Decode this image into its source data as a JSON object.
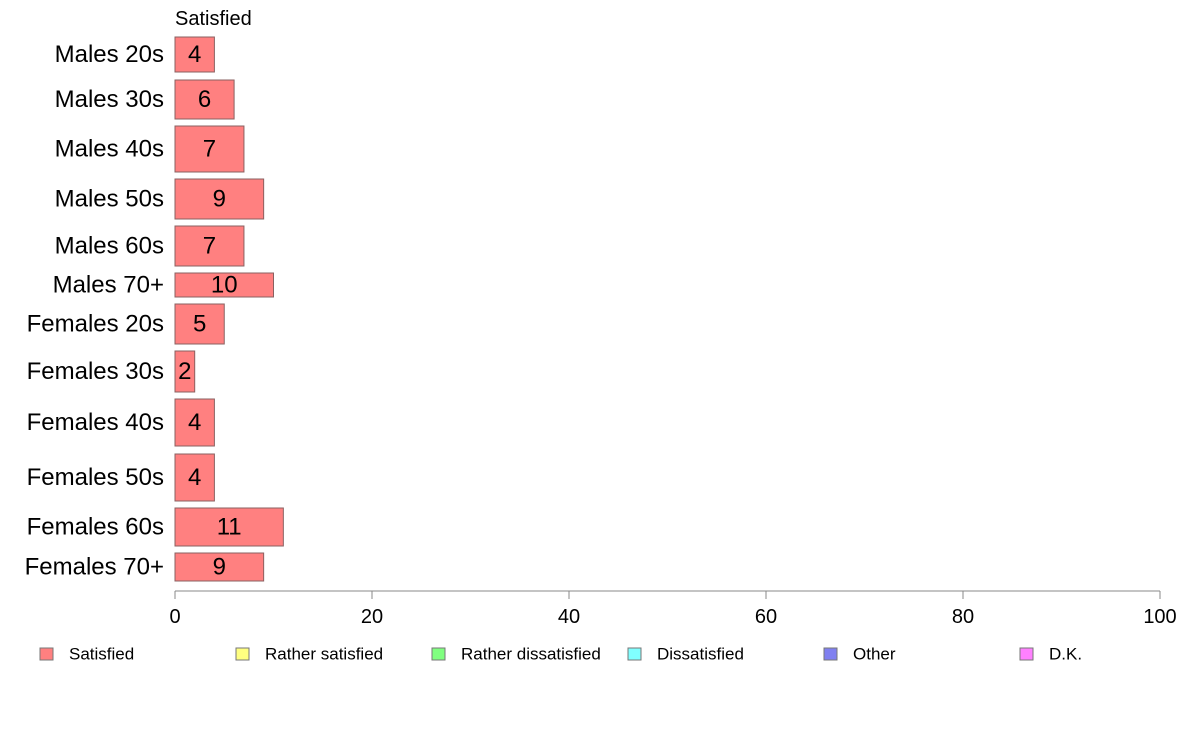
{
  "chart_data": {
    "type": "bar",
    "orientation": "horizontal",
    "stacked": true,
    "categories": [
      "Males 20s",
      "Males 30s",
      "Males 40s",
      "Males 50s",
      "Males 60s",
      "Males 70+",
      "Females 20s",
      "Females 30s",
      "Females 40s",
      "Females 50s",
      "Females 60s",
      "Females 70+"
    ],
    "series": [
      {
        "name": "Satisfied",
        "color": "#ff8080",
        "values": [
          4,
          6,
          7,
          9,
          7,
          10,
          5,
          2,
          4,
          4,
          11,
          9
        ]
      }
    ],
    "series_header": "Satisfied",
    "xlim": [
      0,
      100
    ],
    "xticks": [
      "0",
      "20",
      "40",
      "60",
      "80",
      "100"
    ],
    "grid": false,
    "legend_position": "bottom",
    "legend": [
      {
        "label": "Satisfied",
        "color": "#ff8080"
      },
      {
        "label": "Rather satisfied",
        "color": "#ffff80"
      },
      {
        "label": "Rather dissatisfied",
        "color": "#80ff80"
      },
      {
        "label": "Dissatisfied",
        "color": "#80ffff"
      },
      {
        "label": "Other",
        "color": "#8080f0"
      },
      {
        "label": "D.K.",
        "color": "#ff80ff"
      }
    ]
  }
}
